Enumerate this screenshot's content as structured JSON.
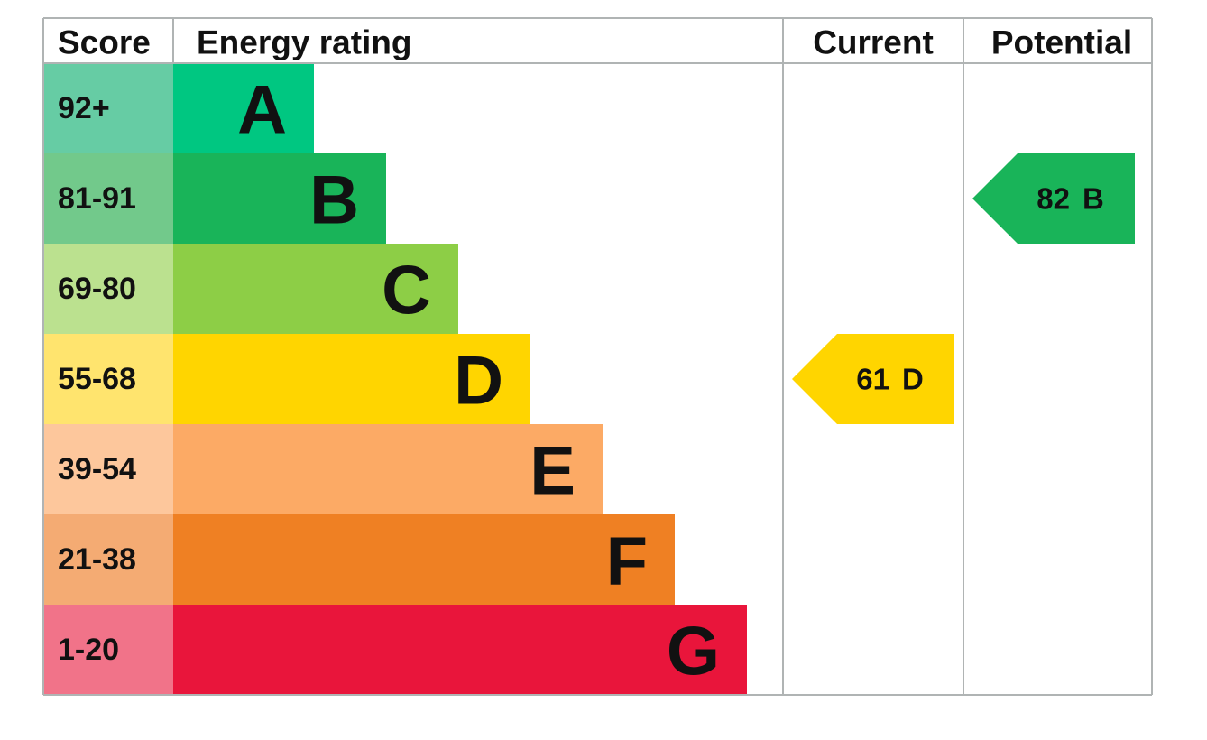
{
  "header": {
    "score": "Score",
    "rating": "Energy rating",
    "current": "Current",
    "potential": "Potential"
  },
  "rows": [
    {
      "score": "92+",
      "letter": "A",
      "color": "#00c781",
      "light": "#66cca4"
    },
    {
      "score": "81-91",
      "letter": "B",
      "color": "#19b459",
      "light": "#72c98b"
    },
    {
      "score": "69-80",
      "letter": "C",
      "color": "#8dce46",
      "light": "#bbe18f"
    },
    {
      "score": "55-68",
      "letter": "D",
      "color": "#ffd500",
      "light": "#ffe46e"
    },
    {
      "score": "39-54",
      "letter": "E",
      "color": "#fcaa65",
      "light": "#fdc79c"
    },
    {
      "score": "21-38",
      "letter": "F",
      "color": "#ef8023",
      "light": "#f4ab73"
    },
    {
      "score": "1-20",
      "letter": "G",
      "color": "#e9153b",
      "light": "#f17389"
    }
  ],
  "current": {
    "score": "61",
    "letter": "D"
  },
  "potential": {
    "score": "82",
    "letter": "B"
  }
}
